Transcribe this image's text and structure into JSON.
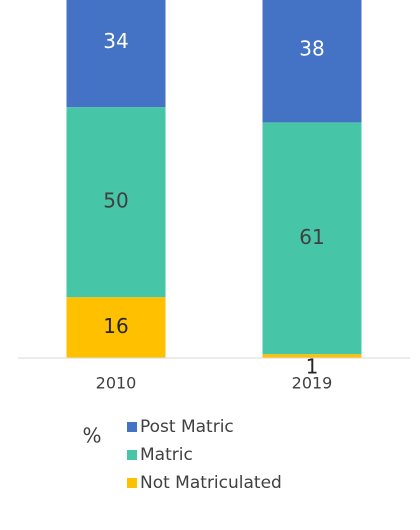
{
  "chart_data": {
    "type": "stacked_bar",
    "categories": [
      "2010",
      "2019"
    ],
    "y_label": "%",
    "series": [
      {
        "name": "Not Matriculated",
        "color": "#ffc000",
        "label_color": "#262626",
        "values": [
          16,
          1
        ]
      },
      {
        "name": "Matric",
        "color": "#47c5a7",
        "label_color": "#404040",
        "values": [
          50,
          61
        ]
      },
      {
        "name": "Post Matric",
        "color": "#4472c4",
        "label_color": "#ffffff",
        "values": [
          34,
          38
        ]
      }
    ]
  }
}
